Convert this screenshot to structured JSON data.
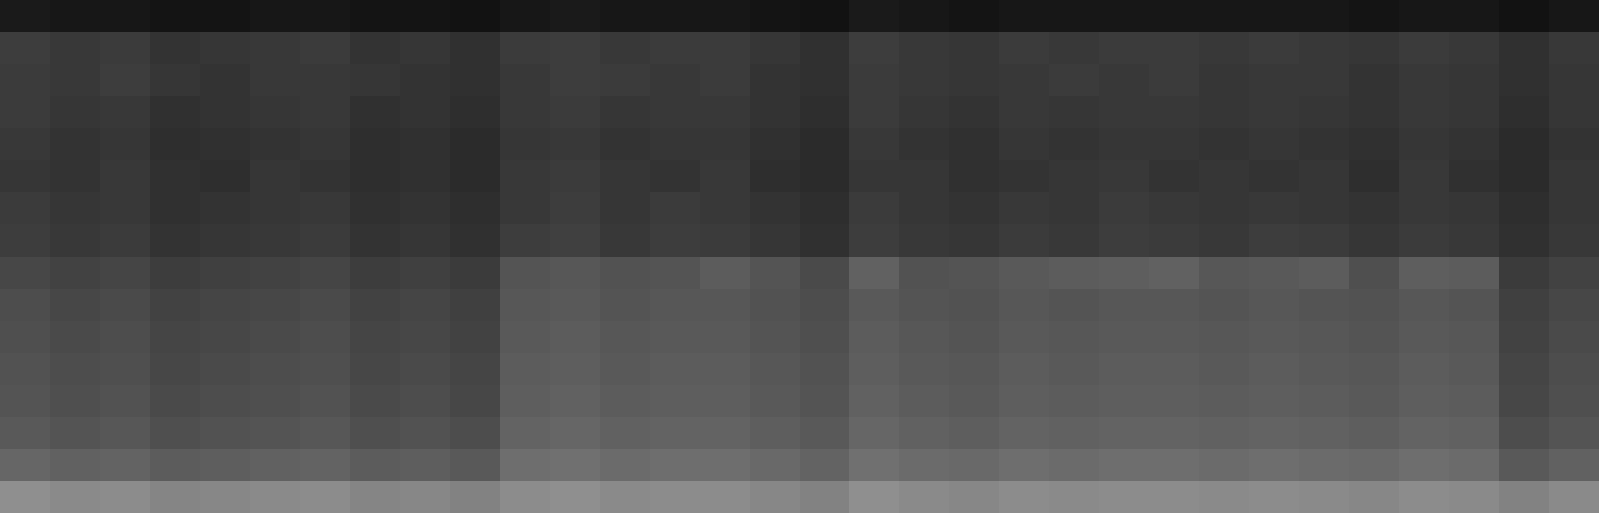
{
  "chart_data": {
    "type": "heatmap",
    "tick_labels": false,
    "grid": false,
    "zlim": [
      0,
      100
    ],
    "cells": [
      [
        10,
        9,
        9,
        8,
        8,
        9,
        9,
        8,
        8,
        7,
        9,
        10,
        9,
        9,
        9,
        8,
        7,
        10,
        9,
        8,
        9,
        9,
        9,
        9,
        9,
        9,
        9,
        8,
        9,
        9,
        7,
        9
      ],
      [
        24,
        22,
        23,
        20,
        21,
        22,
        23,
        20,
        21,
        19,
        23,
        24,
        22,
        23,
        23,
        21,
        19,
        24,
        22,
        21,
        23,
        22,
        23,
        23,
        22,
        23,
        22,
        21,
        23,
        22,
        19,
        22
      ],
      [
        23,
        22,
        24,
        21,
        20,
        22,
        22,
        21,
        20,
        19,
        22,
        24,
        23,
        22,
        23,
        20,
        19,
        23,
        22,
        21,
        22,
        23,
        22,
        23,
        21,
        22,
        22,
        20,
        22,
        21,
        19,
        21
      ],
      [
        23,
        21,
        22,
        19,
        20,
        21,
        22,
        19,
        20,
        18,
        22,
        23,
        21,
        22,
        22,
        20,
        18,
        23,
        21,
        20,
        22,
        21,
        22,
        22,
        21,
        22,
        21,
        20,
        22,
        21,
        18,
        21
      ],
      [
        22,
        20,
        21,
        18,
        19,
        20,
        21,
        18,
        19,
        17,
        21,
        22,
        20,
        21,
        21,
        19,
        17,
        22,
        20,
        19,
        21,
        20,
        21,
        21,
        20,
        21,
        20,
        19,
        21,
        20,
        17,
        20
      ],
      [
        21,
        20,
        22,
        19,
        18,
        21,
        20,
        18,
        19,
        17,
        22,
        23,
        21,
        20,
        22,
        18,
        17,
        21,
        21,
        19,
        20,
        21,
        22,
        20,
        21,
        20,
        21,
        18,
        22,
        19,
        17,
        21
      ],
      [
        23,
        21,
        22,
        19,
        20,
        21,
        22,
        19,
        20,
        18,
        22,
        24,
        21,
        23,
        22,
        20,
        18,
        23,
        21,
        20,
        22,
        21,
        23,
        22,
        21,
        22,
        21,
        20,
        22,
        21,
        18,
        21
      ],
      [
        24,
        22,
        23,
        20,
        21,
        22,
        23,
        20,
        21,
        19,
        24,
        25,
        22,
        24,
        23,
        21,
        19,
        24,
        22,
        21,
        23,
        22,
        24,
        23,
        22,
        24,
        23,
        21,
        23,
        22,
        19,
        22
      ],
      [
        28,
        26,
        27,
        24,
        25,
        26,
        27,
        24,
        25,
        23,
        33,
        34,
        32,
        33,
        36,
        33,
        29,
        38,
        32,
        33,
        35,
        36,
        37,
        38,
        34,
        35,
        36,
        31,
        37,
        36,
        23,
        26
      ],
      [
        30,
        28,
        29,
        26,
        27,
        28,
        29,
        26,
        27,
        25,
        34,
        35,
        33,
        34,
        34,
        32,
        30,
        35,
        33,
        32,
        34,
        33,
        34,
        34,
        33,
        34,
        33,
        32,
        34,
        33,
        25,
        28
      ],
      [
        31,
        29,
        30,
        27,
        28,
        29,
        30,
        27,
        28,
        26,
        35,
        36,
        34,
        35,
        35,
        33,
        31,
        36,
        34,
        33,
        35,
        34,
        35,
        35,
        34,
        35,
        34,
        33,
        35,
        34,
        26,
        29
      ],
      [
        32,
        30,
        31,
        28,
        29,
        30,
        31,
        28,
        29,
        27,
        36,
        37,
        35,
        36,
        36,
        34,
        32,
        37,
        35,
        34,
        36,
        35,
        36,
        36,
        35,
        36,
        35,
        34,
        36,
        35,
        27,
        30
      ],
      [
        33,
        31,
        32,
        29,
        30,
        31,
        32,
        29,
        30,
        28,
        37,
        38,
        36,
        37,
        37,
        35,
        33,
        38,
        36,
        35,
        37,
        36,
        37,
        37,
        36,
        37,
        36,
        35,
        37,
        36,
        28,
        31
      ],
      [
        35,
        33,
        34,
        31,
        32,
        33,
        34,
        31,
        32,
        30,
        39,
        40,
        38,
        39,
        39,
        37,
        35,
        40,
        38,
        37,
        39,
        38,
        39,
        39,
        38,
        39,
        38,
        37,
        39,
        38,
        30,
        33
      ],
      [
        40,
        38,
        39,
        36,
        37,
        38,
        39,
        36,
        37,
        35,
        43,
        44,
        42,
        43,
        43,
        41,
        39,
        44,
        42,
        41,
        43,
        42,
        43,
        43,
        42,
        43,
        42,
        41,
        43,
        42,
        35,
        38
      ],
      [
        56,
        54,
        55,
        52,
        53,
        54,
        55,
        52,
        53,
        51,
        55,
        56,
        54,
        55,
        55,
        53,
        51,
        56,
        54,
        53,
        55,
        54,
        55,
        55,
        54,
        55,
        54,
        53,
        55,
        54,
        51,
        54
      ]
    ]
  }
}
